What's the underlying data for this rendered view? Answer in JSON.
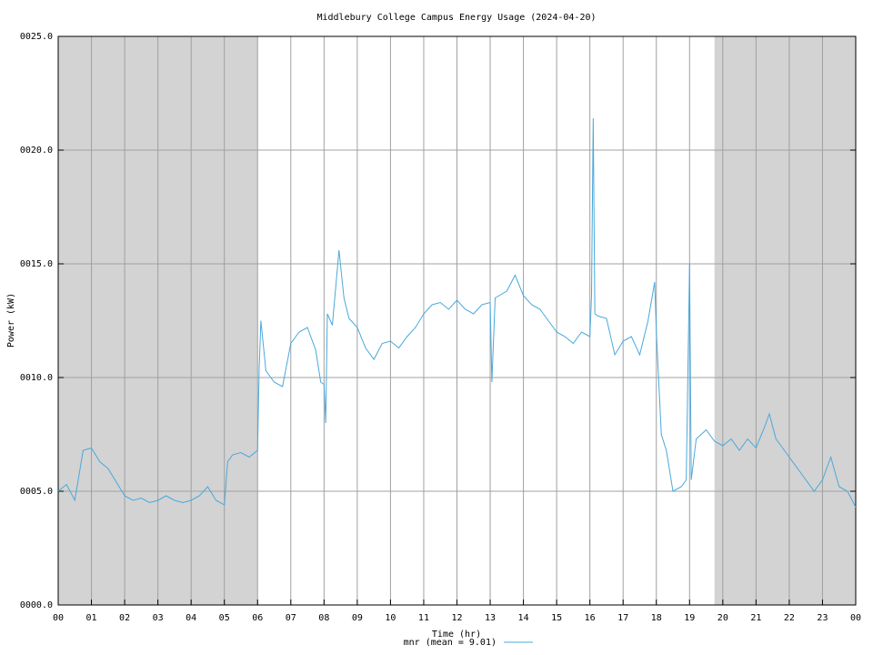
{
  "chart_data": {
    "type": "line",
    "title": "Middlebury College Campus Energy Usage (2024-04-20)",
    "x_label": "Time (hr)",
    "y_label": "Power (kW)",
    "xlim": [
      0,
      24
    ],
    "ylim": [
      0,
      25
    ],
    "xticks": [
      {
        "value": 0,
        "label": "00"
      },
      {
        "value": 1,
        "label": "01"
      },
      {
        "value": 2,
        "label": "02"
      },
      {
        "value": 3,
        "label": "03"
      },
      {
        "value": 4,
        "label": "04"
      },
      {
        "value": 5,
        "label": "05"
      },
      {
        "value": 6,
        "label": "06"
      },
      {
        "value": 7,
        "label": "07"
      },
      {
        "value": 8,
        "label": "08"
      },
      {
        "value": 9,
        "label": "09"
      },
      10,
      11,
      12,
      13,
      14,
      15,
      16,
      17,
      18,
      19,
      20,
      21,
      22,
      23,
      {
        "value": 24,
        "label": "00"
      }
    ],
    "yticks": [
      {
        "value": 0,
        "label": "0000.0"
      },
      {
        "value": 5,
        "label": "0005.0"
      },
      {
        "value": 10,
        "label": "0010.0"
      },
      {
        "value": 15,
        "label": "0015.0"
      },
      {
        "value": 20,
        "label": "0020.0"
      },
      {
        "value": 25,
        "label": "0025.0"
      }
    ],
    "grid": true,
    "shaded_ranges": [
      [
        0,
        6
      ],
      [
        19.75,
        24
      ]
    ],
    "shade_color": "#d3d3d3",
    "legend": "bottom",
    "x": [
      0,
      0.25,
      0.5,
      0.75,
      1.0,
      1.25,
      1.5,
      1.75,
      2.0,
      2.25,
      2.5,
      2.75,
      3.0,
      3.25,
      3.5,
      3.75,
      4.0,
      4.25,
      4.5,
      4.75,
      5.0,
      5.1,
      5.25,
      5.5,
      5.75,
      6.0,
      6.05,
      6.1,
      6.25,
      6.5,
      6.75,
      7.0,
      7.25,
      7.5,
      7.75,
      7.9,
      8.0,
      8.05,
      8.1,
      8.25,
      8.45,
      8.6,
      8.75,
      9.0,
      9.25,
      9.5,
      9.75,
      10.0,
      10.25,
      10.5,
      10.75,
      11.0,
      11.25,
      11.5,
      11.75,
      12.0,
      12.25,
      12.5,
      12.75,
      13.0,
      13.05,
      13.15,
      13.5,
      13.75,
      14.0,
      14.25,
      14.5,
      14.75,
      15.0,
      15.25,
      15.5,
      15.75,
      16.0,
      16.05,
      16.1,
      16.15,
      16.25,
      16.5,
      16.75,
      17.0,
      17.25,
      17.5,
      17.75,
      17.95,
      18.0,
      18.15,
      18.3,
      18.5,
      18.75,
      18.9,
      19.0,
      19.05,
      19.2,
      19.5,
      19.75,
      20.0,
      20.25,
      20.5,
      20.75,
      21.0,
      21.25,
      21.4,
      21.6,
      21.75,
      22.0,
      22.25,
      22.5,
      22.75,
      23.0,
      23.25,
      23.5,
      23.75,
      24.0
    ],
    "series": [
      {
        "name": "mnr (mean = 9.01)",
        "color": "#4aa8dc",
        "values": [
          5.0,
          5.3,
          4.6,
          6.8,
          6.9,
          6.3,
          6.0,
          5.4,
          4.8,
          4.6,
          4.7,
          4.5,
          4.6,
          4.8,
          4.6,
          4.5,
          4.6,
          4.8,
          5.2,
          4.6,
          4.4,
          6.3,
          6.6,
          6.7,
          6.5,
          6.8,
          10.5,
          12.5,
          10.3,
          9.8,
          9.6,
          11.5,
          12.0,
          12.2,
          11.2,
          9.8,
          9.7,
          8.0,
          12.8,
          12.3,
          15.6,
          13.5,
          12.6,
          12.2,
          11.3,
          10.8,
          11.5,
          11.6,
          11.3,
          11.8,
          12.2,
          12.8,
          13.2,
          13.3,
          13.0,
          13.4,
          13.0,
          12.8,
          13.2,
          13.3,
          9.8,
          13.5,
          13.8,
          14.5,
          13.6,
          13.2,
          13.0,
          12.5,
          12.0,
          11.8,
          11.5,
          12.0,
          11.8,
          13.6,
          21.4,
          12.8,
          12.7,
          12.6,
          11.0,
          11.6,
          11.8,
          11.0,
          12.5,
          14.2,
          12.0,
          7.5,
          6.8,
          5.0,
          5.2,
          5.5,
          15.0,
          5.5,
          7.3,
          7.7,
          7.2,
          7.0,
          7.3,
          6.8,
          7.3,
          6.9,
          7.8,
          8.4,
          7.3,
          7.0,
          6.5,
          6.0,
          5.5,
          5.0,
          5.5,
          6.5,
          5.2,
          5.0,
          4.3
        ]
      }
    ]
  }
}
